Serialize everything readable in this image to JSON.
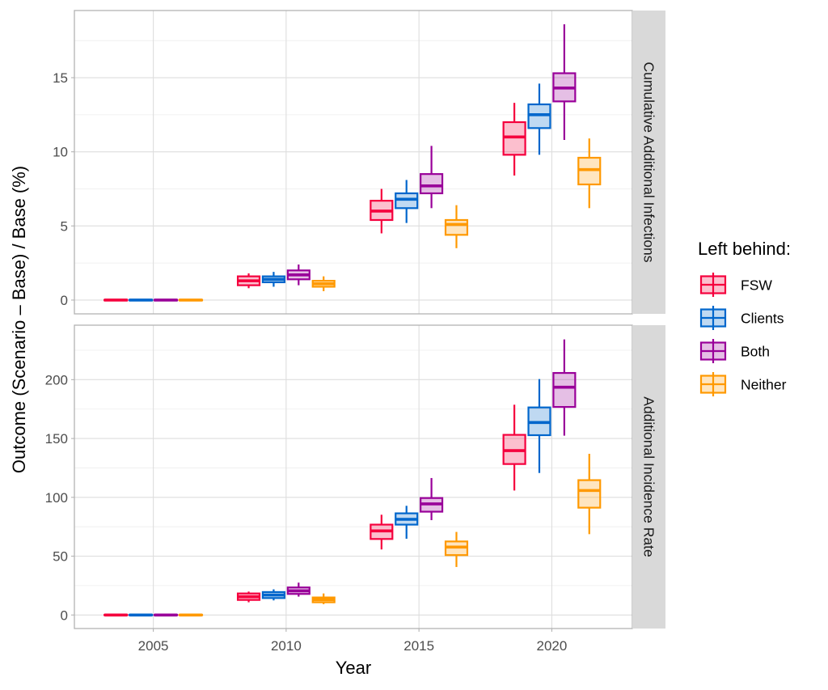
{
  "chart_data": {
    "type": "boxplot",
    "xlabel": "Year",
    "ylabel": "Outcome (Scenario – Base) / Base (%)",
    "x_ticks": [
      "2005",
      "2010",
      "2015",
      "2020"
    ],
    "x_values": [
      2005,
      2010,
      2015,
      2020
    ],
    "xlim": [
      2002.03,
      2023.03
    ],
    "grid": true,
    "legend": {
      "title": "Left behind:",
      "placement": "right",
      "entries": [
        "FSW",
        "Clients",
        "Both",
        "Neither"
      ]
    },
    "series_colors": {
      "FSW": "#f5003d",
      "Clients": "#0066cc",
      "Both": "#990099",
      "Neither": "#ff9900"
    },
    "box_stat_order": [
      "lower_whisker",
      "q1",
      "median",
      "q3",
      "upper_whisker"
    ],
    "panels": [
      {
        "strip": "Cumulative Additional Infections",
        "ylim": [
          -0.93,
          19.53
        ],
        "y_ticks": [
          "0",
          "5",
          "10",
          "15"
        ],
        "y_tick_values": [
          0,
          5,
          10,
          15
        ],
        "y_minor": [
          2.5,
          7.5,
          12.5,
          17.5
        ],
        "series": [
          {
            "name": "FSW",
            "boxes": [
              [
                0,
                0,
                0,
                0,
                0
              ],
              [
                0.8,
                1.0,
                1.3,
                1.6,
                1.8
              ],
              [
                4.5,
                5.4,
                6.0,
                6.7,
                7.5
              ],
              [
                8.4,
                9.8,
                11.0,
                12.0,
                13.3
              ]
            ]
          },
          {
            "name": "Clients",
            "boxes": [
              [
                0,
                0,
                0,
                0,
                0
              ],
              [
                0.9,
                1.2,
                1.4,
                1.6,
                1.9
              ],
              [
                5.2,
                6.2,
                6.8,
                7.2,
                8.1
              ],
              [
                9.8,
                11.6,
                12.5,
                13.2,
                14.6
              ]
            ]
          },
          {
            "name": "Both",
            "boxes": [
              [
                0,
                0,
                0,
                0,
                0
              ],
              [
                1.0,
                1.4,
                1.7,
                2.0,
                2.4
              ],
              [
                6.2,
                7.2,
                7.7,
                8.5,
                10.4
              ],
              [
                10.8,
                13.4,
                14.3,
                15.3,
                18.6
              ]
            ]
          },
          {
            "name": "Neither",
            "boxes": [
              [
                0,
                0,
                0,
                0,
                0
              ],
              [
                0.6,
                0.9,
                1.1,
                1.3,
                1.6
              ],
              [
                3.5,
                4.4,
                5.1,
                5.4,
                6.4
              ],
              [
                6.2,
                7.8,
                8.8,
                9.6,
                10.9
              ]
            ]
          }
        ]
      },
      {
        "strip": "Additional Incidence Rate",
        "ylim": [
          -11.5,
          246.3
        ],
        "y_ticks": [
          "0",
          "50",
          "100",
          "150",
          "200"
        ],
        "y_tick_values": [
          0,
          50,
          100,
          150,
          200
        ],
        "y_minor": [
          25,
          75,
          125,
          175,
          225
        ],
        "series": [
          {
            "name": "FSW",
            "boxes": [
              [
                0,
                0,
                0,
                0,
                0
              ],
              [
                10.8,
                12.8,
                15.5,
                18.3,
                19.9
              ],
              [
                55.7,
                64.6,
                71.5,
                76.8,
                85.2
              ],
              [
                105.8,
                128.3,
                139.7,
                153.1,
                178.7
              ]
            ]
          },
          {
            "name": "Clients",
            "boxes": [
              [
                0,
                0,
                0,
                0,
                0
              ],
              [
                12.4,
                14.4,
                17.0,
                19.5,
                21.8
              ],
              [
                64.8,
                76.8,
                81.3,
                86.4,
                92.8
              ],
              [
                120.7,
                152.8,
                163.6,
                176.4,
                200.5
              ]
            ]
          },
          {
            "name": "Both",
            "boxes": [
              [
                0,
                0,
                0,
                0,
                0
              ],
              [
                15.6,
                17.9,
                20.5,
                23.4,
                27.5
              ],
              [
                80.6,
                87.8,
                94.4,
                99.4,
                116.4
              ],
              [
                152.4,
                176.8,
                193.6,
                205.7,
                234.2
              ]
            ]
          },
          {
            "name": "Neither",
            "boxes": [
              [
                0,
                0,
                0,
                0,
                0
              ],
              [
                9.2,
                10.8,
                13.0,
                14.9,
                18.3
              ],
              [
                40.8,
                50.9,
                57.7,
                62.5,
                70.6
              ],
              [
                68.7,
                91.2,
                105.8,
                114.6,
                137.0
              ]
            ]
          }
        ]
      }
    ]
  }
}
